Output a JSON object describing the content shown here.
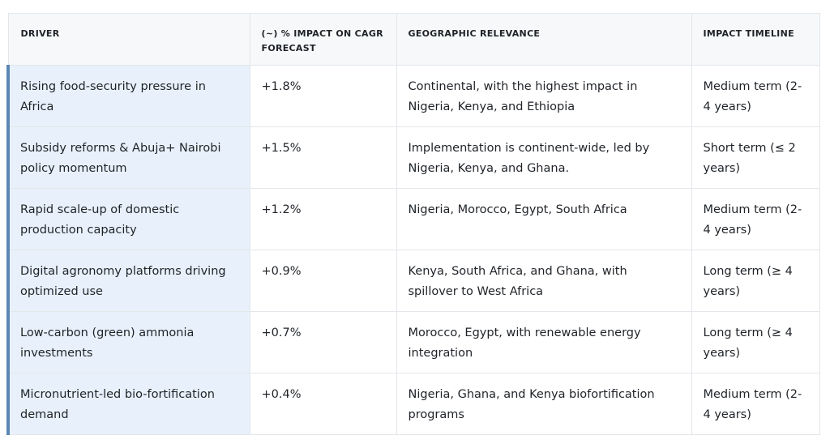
{
  "table": {
    "headers": {
      "driver": "DRIVER",
      "impact": "(~) % IMPACT ON CAGR FORECAST",
      "geography": "GEOGRAPHIC RELEVANCE",
      "timeline": "IMPACT TIMELINE"
    },
    "rows": [
      {
        "driver": "Rising food-security pressure in Africa",
        "impact": "+1.8%",
        "geography": "Continental, with the highest impact in Nigeria, Kenya, and Ethiopia",
        "timeline": "Medium term (2-4 years)"
      },
      {
        "driver": "Subsidy reforms & Abuja+ Nairobi policy momentum",
        "impact": "+1.5%",
        "geography": "Implementation is continent-wide, led by Nigeria, Kenya, and Ghana.",
        "timeline": "Short term (≤ 2 years)"
      },
      {
        "driver": "Rapid scale-up of domestic production capacity",
        "impact": "+1.2%",
        "geography": "Nigeria, Morocco, Egypt, South Africa",
        "timeline": "Medium term (2-4 years)"
      },
      {
        "driver": "Digital agronomy platforms driving optimized use",
        "impact": "+0.9%",
        "geography": "Kenya, South Africa, and Ghana, with spillover to West Africa",
        "timeline": "Long term (≥ 4 years)"
      },
      {
        "driver": "Low-carbon (green) ammonia investments",
        "impact": "+0.7%",
        "geography": "Morocco, Egypt, with renewable energy integration",
        "timeline": "Long term (≥ 4 years)"
      },
      {
        "driver": "Micronutrient-led bio-fortification demand",
        "impact": "+0.4%",
        "geography": "Nigeria, Ghana, and Kenya biofortification programs",
        "timeline": "Medium term (2-4 years)"
      }
    ]
  }
}
